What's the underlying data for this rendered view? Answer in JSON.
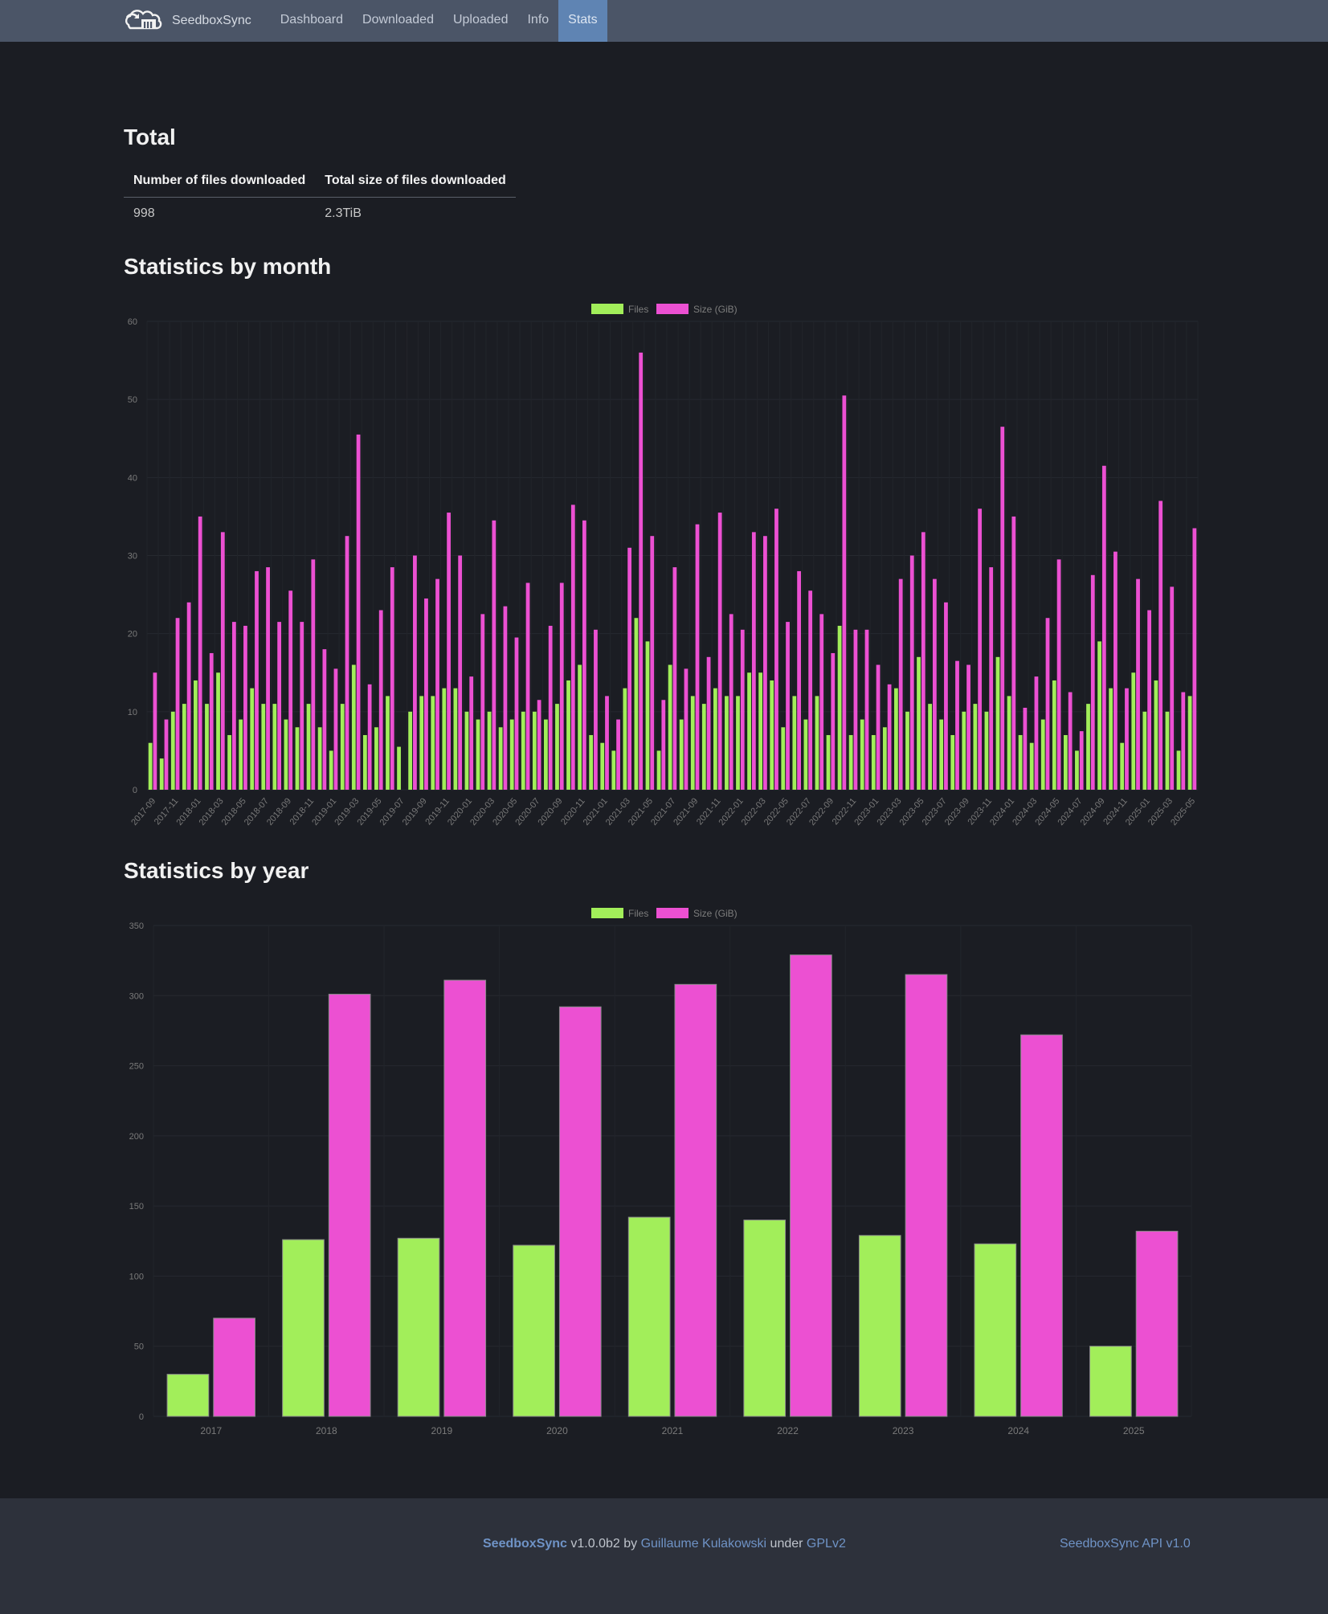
{
  "nav": {
    "brand": "SeedboxSync",
    "items": [
      "Dashboard",
      "Downloaded",
      "Uploaded",
      "Info",
      "Stats"
    ],
    "active_item": "Stats"
  },
  "total": {
    "title": "Total",
    "headers": [
      "Number of files downloaded",
      "Total size of files downloaded"
    ],
    "values": [
      "998",
      "2.3TiB"
    ]
  },
  "colors": {
    "files": "#a2ee5a",
    "size": "#ec50d2"
  },
  "chart_data": [
    {
      "type": "bar",
      "title": "Statistics by month",
      "legend": [
        "Files",
        "Size (GiB)"
      ],
      "legend_position": "top-center",
      "ylim": [
        0,
        60
      ],
      "yticks": [
        0,
        10,
        20,
        30,
        40,
        50,
        60
      ],
      "categories": [
        "2017-09",
        "2017-10",
        "2017-11",
        "2017-12",
        "2018-01",
        "2018-02",
        "2018-03",
        "2018-04",
        "2018-05",
        "2018-06",
        "2018-07",
        "2018-08",
        "2018-09",
        "2018-10",
        "2018-11",
        "2018-12",
        "2019-01",
        "2019-02",
        "2019-03",
        "2019-04",
        "2019-05",
        "2019-06",
        "2019-07",
        "2019-08",
        "2019-09",
        "2019-10",
        "2019-11",
        "2019-12",
        "2020-01",
        "2020-02",
        "2020-03",
        "2020-04",
        "2020-05",
        "2020-06",
        "2020-07",
        "2020-08",
        "2020-09",
        "2020-10",
        "2020-11",
        "2020-12",
        "2021-01",
        "2021-02",
        "2021-03",
        "2021-04",
        "2021-05",
        "2021-06",
        "2021-07",
        "2021-08",
        "2021-09",
        "2021-10",
        "2021-11",
        "2021-12",
        "2022-01",
        "2022-02",
        "2022-03",
        "2022-04",
        "2022-05",
        "2022-06",
        "2022-07",
        "2022-08",
        "2022-09",
        "2022-10",
        "2022-11",
        "2022-12",
        "2023-01",
        "2023-02",
        "2023-03",
        "2023-04",
        "2023-05",
        "2023-06",
        "2023-07",
        "2023-08",
        "2023-09",
        "2023-10",
        "2023-11",
        "2023-12",
        "2024-01",
        "2024-02",
        "2024-03",
        "2024-04",
        "2024-05",
        "2024-06",
        "2024-07",
        "2024-08",
        "2024-09",
        "2024-10",
        "2024-11",
        "2024-12",
        "2025-01",
        "2025-02",
        "2025-03",
        "2025-04",
        "2025-05"
      ],
      "tick_labels": [
        "2017-09",
        "2017-11",
        "2018-01",
        "2018-03",
        "2018-05",
        "2018-07",
        "2018-09",
        "2018-11",
        "2019-01",
        "2019-03",
        "2019-05",
        "2019-07",
        "2019-09",
        "2019-11",
        "2020-01",
        "2020-03",
        "2020-05",
        "2020-07",
        "2020-09",
        "2020-11",
        "2021-01",
        "2021-03",
        "2021-05",
        "2021-07",
        "2021-09",
        "2021-11",
        "2022-01",
        "2022-03",
        "2022-05",
        "2022-07",
        "2022-09",
        "2022-11",
        "2023-01",
        "2023-03",
        "2023-05",
        "2023-07",
        "2023-09",
        "2023-11",
        "2024-01",
        "2024-03",
        "2024-05",
        "2024-07",
        "2024-09",
        "2024-11",
        "2025-01",
        "2025-03",
        "2025-05"
      ],
      "series": [
        {
          "name": "Files",
          "values": [
            6,
            4,
            10,
            11,
            14,
            11,
            15,
            7,
            9,
            13,
            11,
            11,
            9,
            8,
            11,
            8,
            5,
            11,
            16,
            7,
            8,
            12,
            5.5,
            10,
            12,
            12,
            13,
            13,
            10,
            9,
            10,
            8,
            9,
            10,
            10,
            9,
            11,
            14,
            16,
            7,
            6,
            5,
            13,
            22,
            19,
            5,
            16,
            9,
            12,
            11,
            13,
            12,
            12,
            15,
            15,
            14,
            8,
            12,
            9,
            12,
            7,
            21,
            7,
            9,
            7,
            8,
            13,
            10,
            17,
            11,
            9,
            7,
            10,
            11,
            10,
            17,
            12,
            7,
            6,
            9,
            14,
            7,
            5,
            11,
            19,
            13,
            6,
            15,
            10,
            14,
            10,
            5,
            12
          ]
        },
        {
          "name": "Size (GiB)",
          "values": [
            15,
            9,
            22,
            24,
            35,
            17.5,
            33,
            21.5,
            21,
            28,
            28.5,
            21.5,
            25.5,
            21.5,
            29.5,
            18,
            15.5,
            32.5,
            45.5,
            13.5,
            23,
            28.5,
            0,
            30,
            24.5,
            27,
            35.5,
            30,
            14.5,
            22.5,
            34.5,
            23.5,
            19.5,
            26.5,
            11.5,
            21,
            26.5,
            36.5,
            34.5,
            20.5,
            12,
            9,
            31,
            56,
            32.5,
            11.5,
            28.5,
            15.5,
            34,
            17,
            35.5,
            22.5,
            20.5,
            33,
            32.5,
            36,
            21.5,
            28,
            25.5,
            22.5,
            17.5,
            50.5,
            20.5,
            20.5,
            16,
            13.5,
            27,
            30,
            33,
            27,
            24,
            16.5,
            16,
            36,
            28.5,
            46.5,
            35,
            10.5,
            14.5,
            22,
            29.5,
            12.5,
            7.5,
            27.5,
            41.5,
            30.5,
            13,
            27,
            23,
            37,
            26,
            12.5,
            33.5
          ]
        }
      ]
    },
    {
      "type": "bar",
      "title": "Statistics by year",
      "legend": [
        "Files",
        "Size (GiB)"
      ],
      "legend_position": "top-center",
      "ylim": [
        0,
        350
      ],
      "yticks": [
        0,
        50,
        100,
        150,
        200,
        250,
        300,
        350
      ],
      "categories": [
        "2017",
        "2018",
        "2019",
        "2020",
        "2021",
        "2022",
        "2023",
        "2024",
        "2025"
      ],
      "series": [
        {
          "name": "Files",
          "values": [
            30,
            126,
            127,
            122,
            142,
            140,
            129,
            123,
            50
          ]
        },
        {
          "name": "Size (GiB)",
          "values": [
            70,
            301,
            311,
            292,
            308,
            329,
            315,
            272,
            132
          ]
        }
      ]
    }
  ],
  "footer": {
    "app_name": "SeedboxSync",
    "version_text": "v1.0.0b2 by",
    "author": "Guillaume Kulakowski",
    "under_text": "under",
    "license": "GPLv2",
    "api_link": "SeedboxSync API v1.0"
  }
}
